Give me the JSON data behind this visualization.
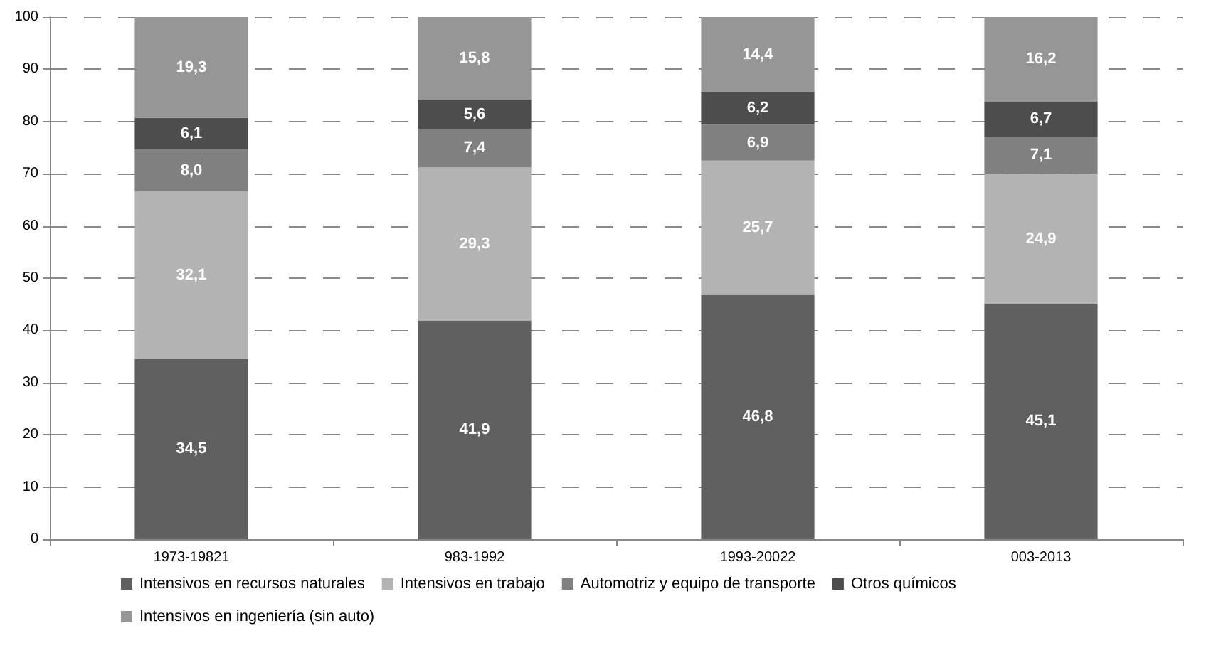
{
  "chart_data": {
    "type": "bar",
    "stacked": true,
    "categories": [
      "1973-19821",
      "983-1992",
      "1993-20022",
      "003-2013"
    ],
    "ylim": [
      0,
      100
    ],
    "yticks": [
      0,
      10,
      20,
      30,
      40,
      50,
      60,
      70,
      80,
      90,
      100
    ],
    "grid": "y",
    "legend": "bottom",
    "series": [
      {
        "name": "Intensivos en recursos naturales",
        "color": "#5f5f5f",
        "values": [
          34.5,
          41.9,
          46.8,
          45.1
        ],
        "value_labels": [
          "34,5",
          "41,9",
          "46,8",
          "45,1"
        ]
      },
      {
        "name": "Intensivos en trabajo",
        "color": "#b3b3b3",
        "values": [
          32.1,
          29.3,
          25.7,
          24.9
        ],
        "value_labels": [
          "32,1",
          "29,3",
          "25,7",
          "24,9"
        ]
      },
      {
        "name": "Automotriz y equipo de transporte",
        "color": "#808080",
        "values": [
          8.0,
          7.4,
          6.9,
          7.1
        ],
        "value_labels": [
          "8,0",
          "7,4",
          "6,9",
          "7,1"
        ]
      },
      {
        "name": "Otros químicos",
        "color": "#4d4d4d",
        "values": [
          6.1,
          5.6,
          6.2,
          6.7
        ],
        "value_labels": [
          "6,1",
          "5,6",
          "6,2",
          "6,7"
        ]
      },
      {
        "name": "Intensivos en ingeniería (sin auto)",
        "color": "#969696",
        "values": [
          19.3,
          15.8,
          14.4,
          16.2
        ],
        "value_labels": [
          "19,3",
          "15,8",
          "14,4",
          "16,2"
        ]
      }
    ]
  }
}
